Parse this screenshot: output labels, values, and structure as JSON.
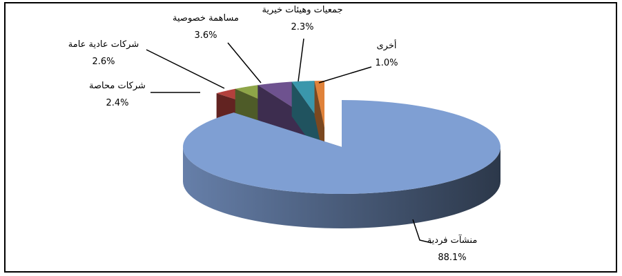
{
  "chart_data": {
    "type": "pie3d",
    "categories": [
      "منشآت فردية",
      "شركات محاصة",
      "شركات عادية عامة",
      "مساهمة خصوصية",
      "جمعيات وهيئات خيرية",
      "أخرى"
    ],
    "values": [
      88.1,
      2.4,
      2.6,
      3.6,
      2.3,
      1.0
    ],
    "value_labels": [
      "88.1%",
      "2.4%",
      "2.6%",
      "3.6%",
      "2.3%",
      "1.0%"
    ],
    "colors": [
      "#7f9fd3",
      "#b3403c",
      "#8ea548",
      "#6e528f",
      "#3a97ac",
      "#e0823a"
    ]
  }
}
